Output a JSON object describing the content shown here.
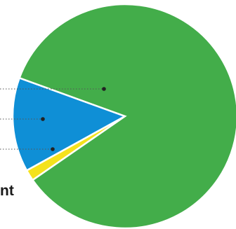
{
  "chart_data": {
    "type": "pie",
    "slices": [
      {
        "value": 84.8,
        "color": "#43ad4a"
      },
      {
        "value": 13.6,
        "color": "#0f8fd6"
      },
      {
        "value": 1.6,
        "color": "#f4e21d"
      }
    ],
    "visible_text_fragments": [
      "nt"
    ],
    "legend": "left, cropped",
    "start_slice_color": "#0f8fd6"
  }
}
